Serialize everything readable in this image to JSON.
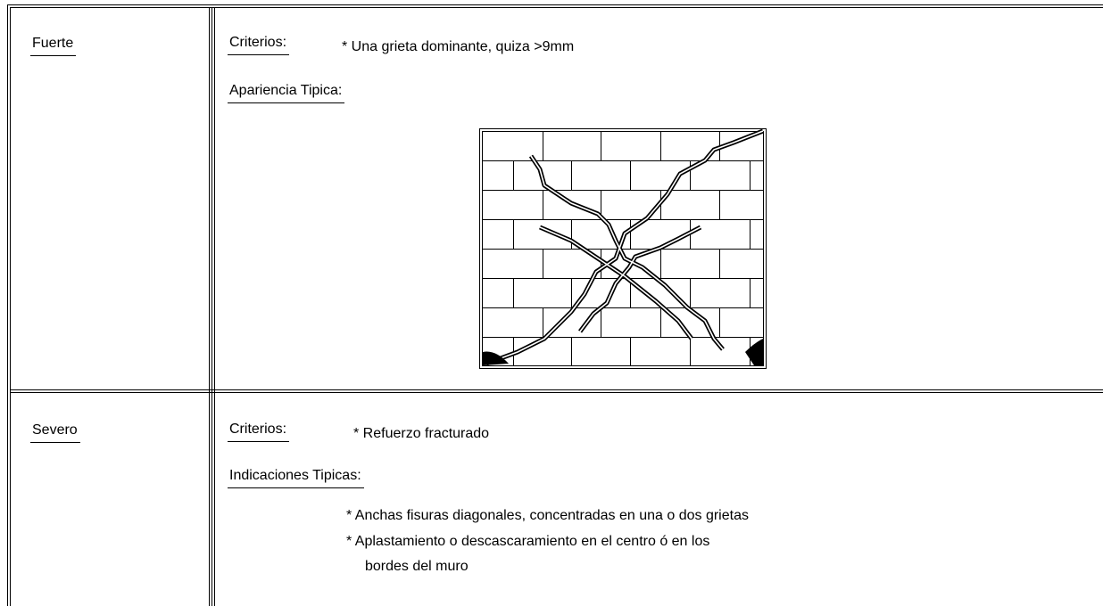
{
  "table": {
    "rows": [
      {
        "level": "Fuerte",
        "criteria_label": "Criterios:",
        "criteria": "* Una grieta dominante, quiza >9mm",
        "detail_label": "Apariencia Tipica:"
      },
      {
        "level": "Severo",
        "criteria_label": "Criterios:",
        "criteria": "* Refuerzo fracturado",
        "detail_label": "Indicaciones Tipicas:",
        "items": [
          [
            "* Anchas fisuras diagonales, concentradas en una o dos grietas"
          ],
          [
            "* Aplastamiento o descascaramiento en el centro ó en los",
            "bordes del muro"
          ]
        ]
      }
    ]
  }
}
